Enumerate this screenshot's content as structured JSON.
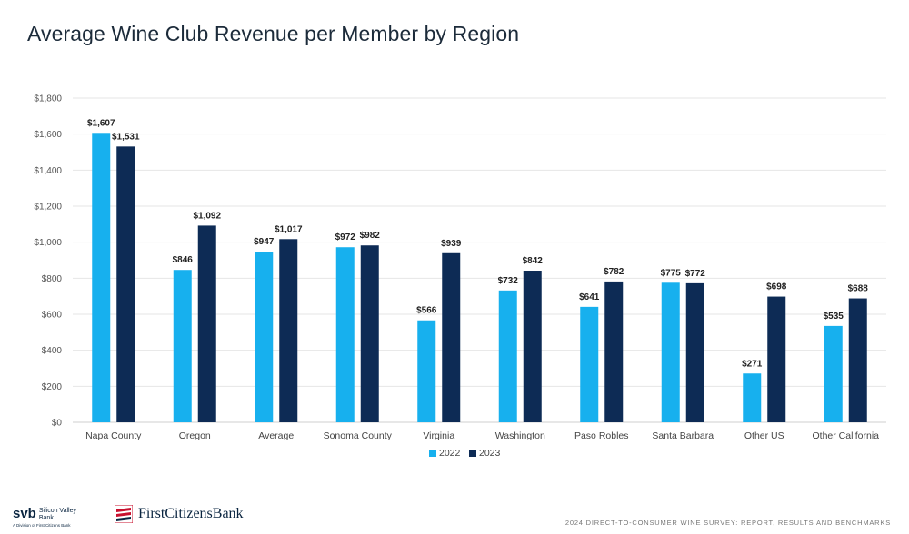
{
  "title": "Average Wine Club Revenue per Member by Region",
  "chart_data": {
    "type": "bar",
    "categories": [
      "Napa County",
      "Oregon",
      "Average",
      "Sonoma County",
      "Virginia",
      "Washington",
      "Paso Robles",
      "Santa Barbara",
      "Other US",
      "Other California"
    ],
    "series": [
      {
        "name": "2022",
        "color": "#17b0ee",
        "values": [
          1607,
          846,
          947,
          972,
          566,
          732,
          641,
          775,
          271,
          535
        ],
        "labels": [
          "$1,607",
          "$846",
          "$947",
          "$972",
          "$566",
          "$732",
          "$641",
          "$775",
          "$271",
          "$535"
        ]
      },
      {
        "name": "2023",
        "color": "#0d2b55",
        "values": [
          1531,
          1092,
          1017,
          982,
          939,
          842,
          782,
          772,
          698,
          688
        ],
        "labels": [
          "$1,531",
          "$1,092",
          "$1,017",
          "$982",
          "$939",
          "$842",
          "$782",
          "$772",
          "$698",
          "$688"
        ]
      }
    ],
    "ylim": [
      0,
      1800
    ],
    "yticks": [
      0,
      200,
      400,
      600,
      800,
      1000,
      1200,
      1400,
      1600,
      1800
    ],
    "ytick_labels": [
      "$0",
      "$200",
      "$400",
      "$600",
      "$800",
      "$1,000",
      "$1,200",
      "$1,400",
      "$1,600",
      "$1,800"
    ],
    "grid": true,
    "legend": "bottom-center"
  },
  "footer": {
    "svb_mark": "svb",
    "svb_name": "Silicon Valley Bank",
    "svb_sub": "A Division of First Citizens Bank",
    "fcb_name": "FirstCitizensBank",
    "survey": "2024 DIRECT-TO-CONSUMER WINE SURVEY: REPORT, RESULTS AND BENCHMARKS"
  }
}
